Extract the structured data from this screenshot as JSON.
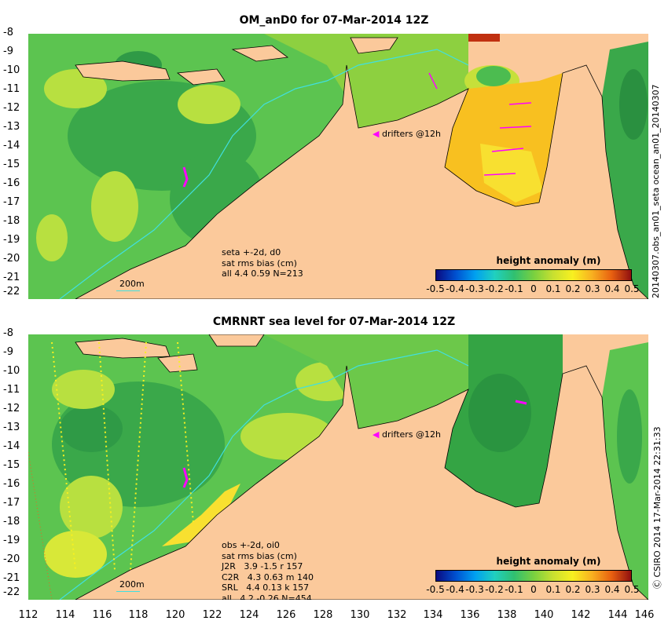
{
  "panel1": {
    "title": "OM_anD0 for 07-Mar-2014 12Z",
    "side_label": "20140307.obs_an01_seta    ocean_an01_20140307",
    "stats": [
      "seta +-2d, d0",
      "sat rms bias (cm)",
      "all 4.4 0.59 N=213"
    ],
    "drifters": "drifters @12h",
    "scale": "200m",
    "colorbar_title": "height anomaly (m)"
  },
  "panel2": {
    "title": "CMRNRT sea level  for 07-Mar-2014 12Z",
    "side_label": "Ⓒ CSIRO 2014   17-Mar-2014 22:31:33",
    "stats": [
      "obs +-2d, oi0",
      "sat rms bias (cm)",
      "J2R   3.9 -1.5 r 157",
      "C2R   4.3 0.63 m 140",
      "SRL   4.4 0.13 k 157",
      "all   4.2 -0.26 N=454"
    ],
    "drifters": "drifters @12h",
    "scale": "200m",
    "colorbar_title": "height anomaly (m)"
  },
  "y_ticks": [
    "-8",
    "-9",
    "-10",
    "-11",
    "-12",
    "-13",
    "-14",
    "-15",
    "-16",
    "-17",
    "-18",
    "-19",
    "-20",
    "-21",
    "-22"
  ],
  "x_ticks": [
    "112",
    "114",
    "116",
    "118",
    "120",
    "122",
    "124",
    "126",
    "128",
    "130",
    "132",
    "134",
    "136",
    "138",
    "140",
    "142",
    "144",
    "146"
  ],
  "colorbar_ticks": [
    "-0.5",
    "-0.4",
    "-0.3",
    "-0.2",
    "-0.1",
    "0",
    "0.1",
    "0.2",
    "0.3",
    "0.4",
    "0.5"
  ],
  "colors": {
    "land": "#fbc99b",
    "drifter": "#ff00ff",
    "isobath": "#40e0e0"
  }
}
